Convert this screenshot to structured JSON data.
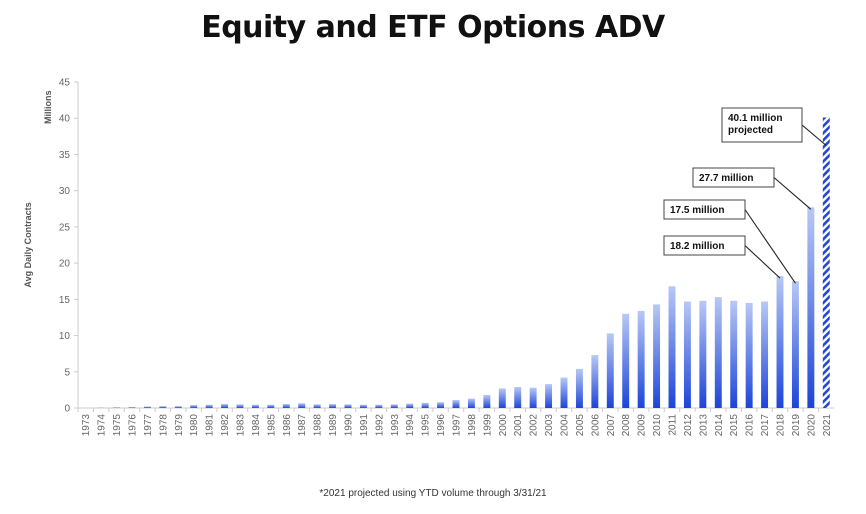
{
  "title": "Equity and ETF Options ADV",
  "footnote": "*2021 projected using YTD volume through 3/31/21",
  "chart_data": {
    "type": "bar",
    "ylabel": "Avg Daily Contracts",
    "yunit": "Millions",
    "ylim": [
      0,
      45
    ],
    "yticks": [
      0,
      5,
      10,
      15,
      20,
      25,
      30,
      35,
      40,
      45
    ],
    "grid": false,
    "categories": [
      "1973",
      "1974",
      "1975",
      "1976",
      "1977",
      "1978",
      "1979",
      "1980",
      "1981",
      "1982",
      "1983",
      "1984",
      "1985",
      "1986",
      "1987",
      "1988",
      "1989",
      "1990",
      "1991",
      "1992",
      "1993",
      "1994",
      "1995",
      "1996",
      "1997",
      "1998",
      "1999",
      "2000",
      "2001",
      "2002",
      "2003",
      "2004",
      "2005",
      "2006",
      "2007",
      "2008",
      "2009",
      "2010",
      "2011",
      "2012",
      "2013",
      "2014",
      "2015",
      "2016",
      "2017",
      "2018",
      "2019",
      "2020",
      "2021"
    ],
    "values": [
      0.0,
      0.05,
      0.08,
      0.12,
      0.2,
      0.25,
      0.25,
      0.4,
      0.45,
      0.55,
      0.5,
      0.45,
      0.45,
      0.55,
      0.65,
      0.5,
      0.55,
      0.5,
      0.45,
      0.45,
      0.5,
      0.6,
      0.7,
      0.8,
      1.1,
      1.3,
      1.8,
      2.7,
      2.9,
      2.8,
      3.3,
      4.2,
      5.4,
      7.3,
      10.3,
      13.0,
      13.4,
      14.3,
      16.8,
      14.7,
      14.8,
      15.3,
      14.8,
      14.5,
      14.7,
      18.2,
      17.5,
      27.7,
      40.1
    ],
    "projected": [
      "2021"
    ],
    "callouts": [
      {
        "category": "2018",
        "lines": [
          "18.2 million"
        ]
      },
      {
        "category": "2019",
        "lines": [
          "17.5 million"
        ]
      },
      {
        "category": "2020",
        "lines": [
          "27.7 million"
        ]
      },
      {
        "category": "2021",
        "lines": [
          "40.1 million",
          "projected"
        ]
      }
    ],
    "colors": {
      "bar_light": "#b8c8f5",
      "bar_dark": "#1c44d8",
      "projected": "#2346d6"
    }
  }
}
